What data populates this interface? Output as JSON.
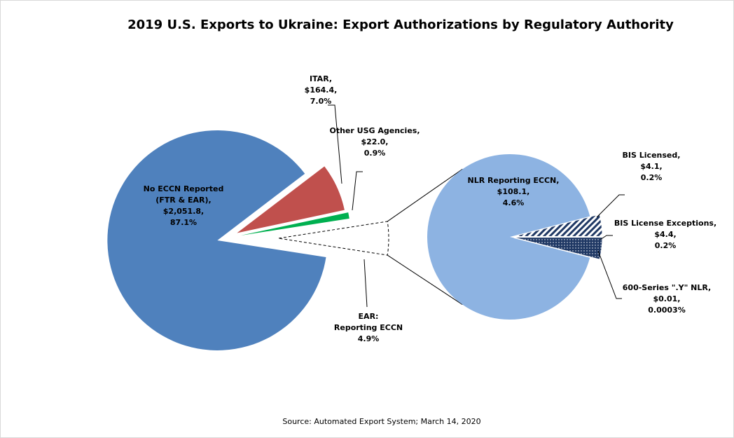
{
  "chart_data": {
    "type": "pie-of-pie",
    "title": "2019 U.S. Exports to Ukraine: Export Authorizations by Regulatory Authority",
    "source": "Source: Automated Export System; March 14, 2020",
    "primary": {
      "slices": [
        {
          "name_lines": [
            "No ECCN Reported",
            "(FTR & EAR),"
          ],
          "value": 2051.8,
          "value_label": "$2,051.8,",
          "percent": 87.1,
          "percent_label": "87.1%",
          "color": "#4f81bd"
        },
        {
          "name_lines": [
            "ITAR,"
          ],
          "value": 164.4,
          "value_label": "$164.4,",
          "percent": 7.0,
          "percent_label": "7.0%",
          "color": "#c0504d"
        },
        {
          "name_lines": [
            "Other USG Agencies,"
          ],
          "value": 22.0,
          "value_label": "$22.0,",
          "percent": 0.9,
          "percent_label": "0.9%",
          "color": "#00b050"
        },
        {
          "name_lines": [
            "EAR:",
            "Reporting ECCN"
          ],
          "percent": 4.9,
          "percent_label": "4.9%",
          "color": "#ffffff",
          "expanded": true
        }
      ]
    },
    "secondary": {
      "slices": [
        {
          "name_lines": [
            "NLR Reporting ECCN,"
          ],
          "value": 108.1,
          "value_label": "$108.1,",
          "percent": 4.6,
          "percent_label": "4.6%",
          "color": "#8db3e2"
        },
        {
          "name_lines": [
            "BIS Licensed,"
          ],
          "value": 4.1,
          "value_label": "$4.1,",
          "percent": 0.2,
          "percent_label": "0.2%",
          "color": "#1f3864",
          "pattern": "stripes"
        },
        {
          "name_lines": [
            "BIS License Exceptions,"
          ],
          "value": 4.4,
          "value_label": "$4.4,",
          "percent": 0.2,
          "percent_label": "0.2%",
          "color": "#1f3864",
          "pattern": "dots"
        },
        {
          "name_lines": [
            "600-Series \".Y\" NLR,"
          ],
          "value": 0.01,
          "value_label": "$0.01,",
          "percent": 0.0003,
          "percent_label": "0.0003%",
          "color": "#1f3864"
        }
      ]
    }
  }
}
